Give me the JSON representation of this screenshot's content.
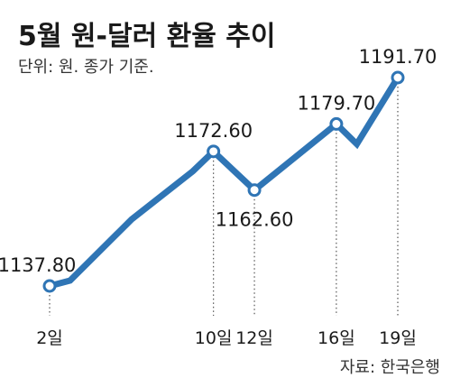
{
  "header": {
    "title": "5월 원-달러 환율 추이",
    "subtitle": "단위: 원. 종가 기준."
  },
  "footer": {
    "source": "자료: 한국은행"
  },
  "chart_data": {
    "type": "line",
    "title": "5월 원-달러 환율 추이",
    "unit_note": "단위: 원. 종가 기준.",
    "line_color": "#2f75b5",
    "marker_fill": "#ffffff",
    "guide_line_style": "dotted",
    "grid": false,
    "legend": "none",
    "xlim": [
      1,
      20
    ],
    "ylim": [
      1120,
      1200
    ],
    "x": [
      2,
      3,
      6,
      9,
      10,
      12,
      16,
      17,
      19
    ],
    "y": [
      1137.8,
      1139.2,
      1155.0,
      1167.5,
      1172.6,
      1162.6,
      1179.7,
      1174.5,
      1191.7
    ],
    "ticks": [
      {
        "x": 2,
        "label": "2일"
      },
      {
        "x": 10,
        "label": "10일"
      },
      {
        "x": 12,
        "label": "12일"
      },
      {
        "x": 16,
        "label": "16일"
      },
      {
        "x": 19,
        "label": "19일"
      }
    ],
    "labeled_points": [
      {
        "x": 2,
        "y": 1137.8,
        "label": "1137.80",
        "pos": "above-left"
      },
      {
        "x": 10,
        "y": 1172.6,
        "label": "1172.60",
        "pos": "above"
      },
      {
        "x": 12,
        "y": 1162.6,
        "label": "1162.60",
        "pos": "below"
      },
      {
        "x": 16,
        "y": 1179.7,
        "label": "1179.70",
        "pos": "above"
      },
      {
        "x": 19,
        "y": 1191.7,
        "label": "1191.70",
        "pos": "above"
      }
    ]
  }
}
